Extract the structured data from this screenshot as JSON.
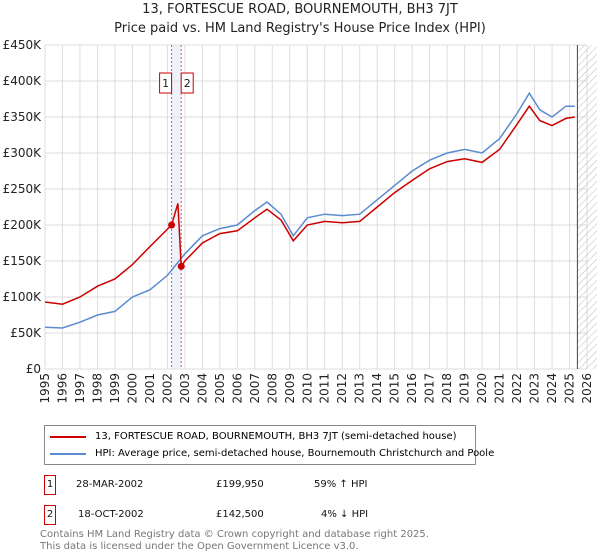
{
  "chart_data": {
    "type": "line",
    "title": "13, FORTESCUE ROAD, BOURNEMOUTH, BH3 7JT",
    "subtitle": "Price paid vs. HM Land Registry's House Price Index (HPI)",
    "ylim": [
      0,
      450000
    ],
    "xlim": [
      1995,
      2026
    ],
    "yticks": [
      "£0",
      "£50K",
      "£100K",
      "£150K",
      "£200K",
      "£250K",
      "£300K",
      "£350K",
      "£400K",
      "£450K"
    ],
    "xticks": [
      "1995",
      "1996",
      "1997",
      "1998",
      "1999",
      "2000",
      "2001",
      "2002",
      "2003",
      "2004",
      "2005",
      "2006",
      "2007",
      "2008",
      "2009",
      "2010",
      "2011",
      "2012",
      "2013",
      "2014",
      "2015",
      "2016",
      "2017",
      "2018",
      "2019",
      "2020",
      "2021",
      "2022",
      "2023",
      "2024",
      "2025",
      "2026"
    ],
    "series": [
      {
        "name": "13, FORTESCUE ROAD, BOURNEMOUTH, BH3 7JT (semi-detached house)",
        "color": "#cc0000",
        "x": [
          1995,
          1996,
          1997,
          1998,
          1999,
          2000,
          2001,
          2002.24,
          2002.6,
          2002.79,
          2003,
          2004,
          2005,
          2006,
          2007,
          2007.7,
          2008.5,
          2009.2,
          2010,
          2011,
          2012,
          2013,
          2014,
          2015,
          2016,
          2017,
          2018,
          2019,
          2020,
          2021,
          2022,
          2022.7,
          2023.3,
          2024,
          2024.8,
          2025.3
        ],
        "y": [
          93000,
          90000,
          100000,
          115000,
          125000,
          145000,
          170000,
          199950,
          230000,
          142500,
          150000,
          175000,
          188000,
          192000,
          210000,
          222000,
          207000,
          178000,
          200000,
          205000,
          203000,
          205000,
          225000,
          245000,
          262000,
          278000,
          288000,
          292000,
          287000,
          305000,
          340000,
          365000,
          345000,
          338000,
          348000,
          350000
        ]
      },
      {
        "name": "HPI: Average price, semi-detached house, Bournemouth Christchurch and Poole",
        "color": "#5b8bd0",
        "x": [
          1995,
          1996,
          1997,
          1998,
          1999,
          2000,
          2001,
          2002,
          2003,
          2004,
          2005,
          2006,
          2007,
          2007.7,
          2008.5,
          2009.2,
          2010,
          2011,
          2012,
          2013,
          2014,
          2015,
          2016,
          2017,
          2018,
          2019,
          2020,
          2021,
          2022,
          2022.7,
          2023.3,
          2024,
          2024.8,
          2025.3
        ],
        "y": [
          58000,
          57000,
          65000,
          75000,
          80000,
          100000,
          110000,
          130000,
          160000,
          185000,
          195000,
          200000,
          220000,
          232000,
          215000,
          185000,
          210000,
          215000,
          213000,
          215000,
          235000,
          255000,
          275000,
          290000,
          300000,
          305000,
          300000,
          320000,
          355000,
          383000,
          360000,
          350000,
          365000,
          365000
        ]
      }
    ],
    "sales": [
      {
        "label": "1",
        "date": "28-MAR-2002",
        "price": "£199,950",
        "hpi": "59% ↑ HPI",
        "x": 2002.24,
        "y": 199950
      },
      {
        "label": "2",
        "date": "18-OCT-2002",
        "price": "£142,500",
        "hpi": "4% ↓ HPI",
        "x": 2002.79,
        "y": 142500
      }
    ]
  },
  "footer": [
    "Contains HM Land Registry data © Crown copyright and database right 2025.",
    "This data is licensed under the Open Government Licence v3.0."
  ]
}
